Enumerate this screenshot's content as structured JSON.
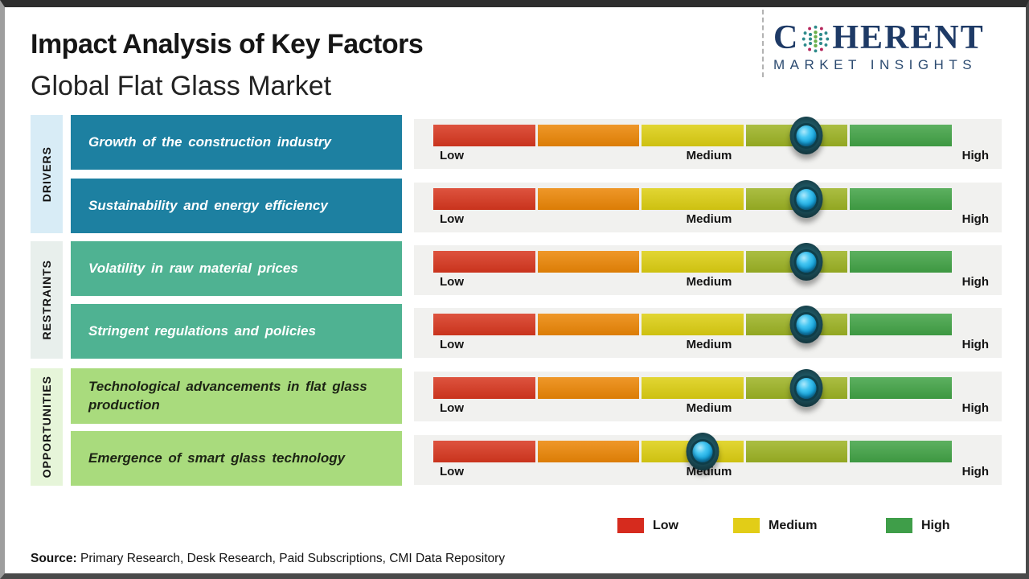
{
  "header": {
    "title": "Impact Analysis of Key Factors",
    "subtitle": "Global Flat Glass Market"
  },
  "logo": {
    "brand": "Coherent Market Insights",
    "word_start": "C",
    "word_end": "HERENT",
    "tagline": "MARKET INSIGHTS",
    "navy_color": "#1e3a66",
    "globe_dot_colors": [
      "#6ab04c",
      "#2e8b8b",
      "#b5265c"
    ]
  },
  "groups": [
    {
      "label": "DRIVERS",
      "strip_color": "#d8ecf6",
      "box_color": "#1d80a1"
    },
    {
      "label": "RESTRAINTS",
      "strip_color": "#e8efec",
      "box_color": "#4fb292"
    },
    {
      "label": "OPPORTUNITIES",
      "strip_color": "#e6f5d9",
      "box_color": "#a9db7d"
    }
  ],
  "legend": {
    "items": [
      {
        "label": "Low",
        "color": "#d62b1e"
      },
      {
        "label": "Medium",
        "color": "#e2cd17"
      },
      {
        "label": "High",
        "color": "#3f9e49"
      }
    ]
  },
  "source": {
    "prefix": "Source:",
    "text": " Primary Research, Desk Research, Paid Subscriptions, CMI Data Repository"
  },
  "chart_data": {
    "type": "bar",
    "title": "Impact Analysis of Key Factors",
    "subtitle": "Global Flat Glass Market",
    "scale": {
      "ticks": [
        "Low",
        "Medium",
        "High"
      ],
      "segment_colors": [
        "#d8371f",
        "#ec8606",
        "#ddcf12",
        "#9db324",
        "#42a346"
      ],
      "range": [
        0,
        100
      ]
    },
    "series": [
      {
        "group": "DRIVERS",
        "factor": "Growth of the construction industry",
        "impact_percent": 72,
        "impact_level": "Medium-High"
      },
      {
        "group": "DRIVERS",
        "factor": "Sustainability and energy efficiency",
        "impact_percent": 72,
        "impact_level": "Medium-High"
      },
      {
        "group": "RESTRAINTS",
        "factor": "Volatility in raw material prices",
        "impact_percent": 72,
        "impact_level": "Medium-High"
      },
      {
        "group": "RESTRAINTS",
        "factor": "Stringent regulations and policies",
        "impact_percent": 72,
        "impact_level": "Medium-High"
      },
      {
        "group": "OPPORTUNITIES",
        "factor": "Technological advancements in flat glass production",
        "impact_percent": 72,
        "impact_level": "Medium-High"
      },
      {
        "group": "OPPORTUNITIES",
        "factor": "Emergence of smart glass technology",
        "impact_percent": 52,
        "impact_level": "Medium"
      }
    ],
    "legend_position": "bottom-right",
    "knob_color": "#2ab4e8",
    "grid": false
  }
}
